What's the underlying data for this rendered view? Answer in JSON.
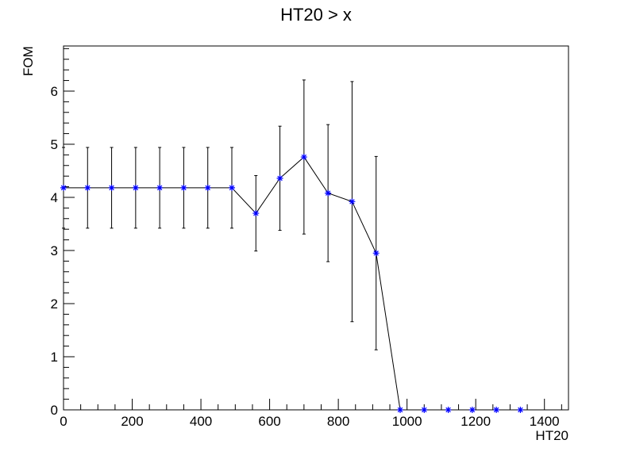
{
  "chart_data": {
    "type": "scatter",
    "title": "HT20 > x",
    "xlabel": "HT20",
    "ylabel": "FOM",
    "xlim": [
      0,
      1470
    ],
    "ylim": [
      0,
      6.85
    ],
    "x_ticks": [
      0,
      200,
      400,
      600,
      800,
      1000,
      1200,
      1400
    ],
    "y_ticks": [
      0,
      1,
      2,
      3,
      4,
      5,
      6
    ],
    "grid": false,
    "marker_color": "#0000ff",
    "line_color": "#000000",
    "series": [
      {
        "x": [
          0,
          70,
          140,
          210,
          280,
          350,
          420,
          490,
          560,
          630,
          700,
          770,
          840,
          910,
          980,
          1050,
          1120,
          1190,
          1260,
          1330
        ],
        "y": [
          4.18,
          4.18,
          4.18,
          4.18,
          4.18,
          4.18,
          4.18,
          4.18,
          3.7,
          4.36,
          4.76,
          4.08,
          3.92,
          2.95,
          0,
          0,
          0,
          0,
          0,
          0
        ],
        "yerr": [
          0.76,
          0.76,
          0.76,
          0.76,
          0.76,
          0.76,
          0.76,
          0.76,
          0.71,
          0.98,
          1.45,
          1.29,
          2.26,
          1.82,
          0,
          0,
          0,
          0,
          0,
          0
        ],
        "line_through_first_n": 15
      }
    ]
  }
}
